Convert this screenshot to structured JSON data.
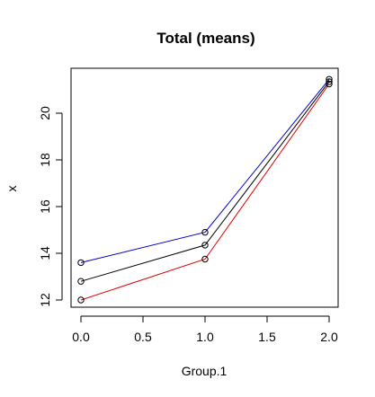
{
  "chart_data": {
    "type": "line",
    "title": "Total (means)",
    "xlabel": "Group.1",
    "ylabel": "x",
    "xlim": [
      0,
      2
    ],
    "ylim": [
      12,
      21.5
    ],
    "x_ticks": [
      "0.0",
      "0.5",
      "1.0",
      "1.5",
      "2.0"
    ],
    "y_ticks": [
      "12",
      "14",
      "16",
      "18",
      "20"
    ],
    "grid": false,
    "legend": "none",
    "x": [
      0,
      1,
      2
    ],
    "series": [
      {
        "color": "#0000cc",
        "values": [
          13.6,
          14.9,
          21.45
        ]
      },
      {
        "color": "#000000",
        "values": [
          12.8,
          14.35,
          21.35
        ]
      },
      {
        "color": "#dd0000",
        "values": [
          12.0,
          13.75,
          21.25
        ]
      }
    ]
  }
}
